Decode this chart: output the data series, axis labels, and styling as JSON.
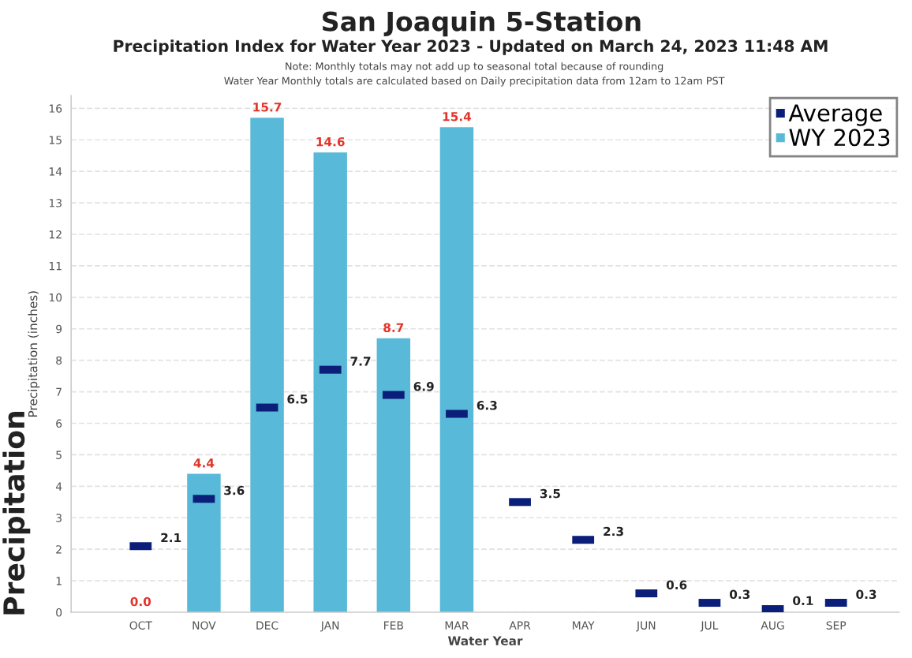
{
  "chart_data": {
    "type": "bar",
    "title": "San Joaquin 5-Station",
    "subtitle": "Precipitation Index for Water Year 2023 - Updated on March 24, 2023 11:48 AM",
    "annotations": [
      "Note: Monthly totals may not add up to seasonal total because of rounding",
      "Water Year Monthly totals are calculated based on Daily precipitation data from 12am to 12am PST",
      "Precipitation"
    ],
    "xlabel": "Water Year",
    "ylabel": "Precipitation (inches)",
    "categories": [
      "OCT",
      "NOV",
      "DEC",
      "JAN",
      "FEB",
      "MAR",
      "APR",
      "MAY",
      "JUN",
      "JUL",
      "AUG",
      "SEP"
    ],
    "series": [
      {
        "name": "Average",
        "type": "scatter",
        "marker": "square",
        "color": "#0b1f7a",
        "values": [
          2.1,
          3.6,
          6.5,
          7.7,
          6.9,
          6.3,
          3.5,
          2.3,
          0.6,
          0.3,
          0.1,
          0.3
        ],
        "value_labels": [
          "2.1",
          "3.6",
          "6.5",
          "7.7",
          "6.9",
          "6.3",
          "3.5",
          "2.3",
          "0.6",
          "0.3",
          "0.1",
          "0.3"
        ]
      },
      {
        "name": "WY 2023",
        "color": "#58b9d8",
        "values": [
          0.0,
          4.4,
          15.7,
          14.6,
          8.7,
          15.4,
          null,
          null,
          null,
          null,
          null,
          null
        ],
        "value_labels": [
          "0.0",
          "4.4",
          "15.7",
          "14.6",
          "8.7",
          "15.4",
          null,
          null,
          null,
          null,
          null,
          null
        ]
      }
    ],
    "ylim": [
      0,
      16.4
    ],
    "yticks": [
      0,
      1,
      2,
      3,
      4,
      5,
      6,
      7,
      8,
      9,
      10,
      11,
      12,
      13,
      14,
      15,
      16
    ],
    "grid": "y",
    "legend": "top right"
  }
}
